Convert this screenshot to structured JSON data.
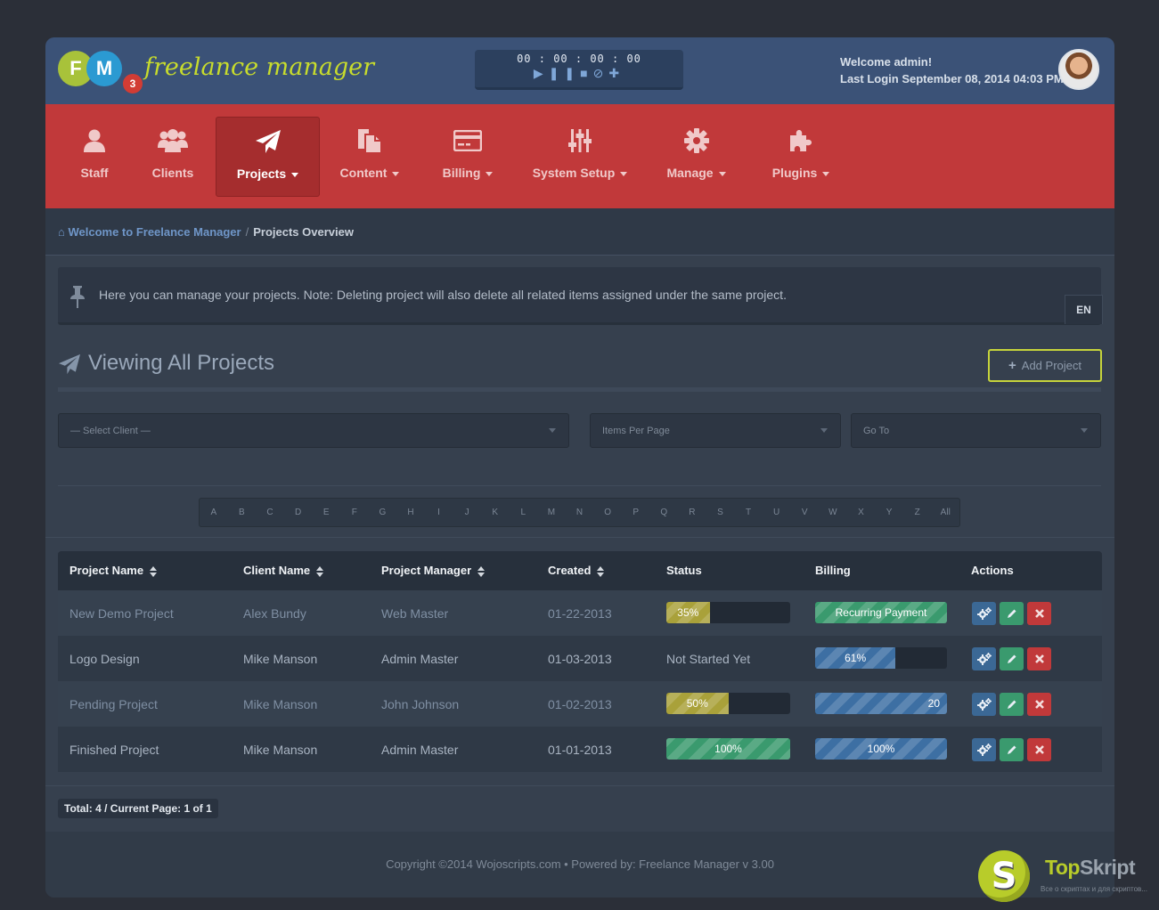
{
  "header": {
    "logo_f": "F",
    "logo_m": "M",
    "logo_num": "3",
    "brand": "freelance manager",
    "timer": "00 : 00 : 00 : 00",
    "welcome": "Welcome admin!",
    "last_login": "Last Login September 08, 2014 04:03 PM"
  },
  "nav": {
    "items": [
      {
        "label": "Staff",
        "icon": "user-icon"
      },
      {
        "label": "Clients",
        "icon": "users-icon"
      },
      {
        "label": "Projects",
        "icon": "paper-plane-icon",
        "active": true
      },
      {
        "label": "Content",
        "icon": "files-icon"
      },
      {
        "label": "Billing",
        "icon": "credit-card-icon"
      },
      {
        "label": "System Setup",
        "icon": "sliders-icon"
      },
      {
        "label": "Manage",
        "icon": "gear-icon"
      },
      {
        "label": "Plugins",
        "icon": "puzzle-icon"
      }
    ]
  },
  "breadcrumb": {
    "home": "Welcome to Freelance Manager",
    "separator": "/",
    "current": "Projects Overview"
  },
  "info": {
    "text": "Here you can manage your projects. Note: Deleting project will also delete all related items assigned under the same project.",
    "lang": "EN"
  },
  "page": {
    "title": "Viewing All Projects",
    "add_button": "Add Project"
  },
  "filters": {
    "client": "— Select Client —",
    "per_page": "Items Per Page",
    "go_to": "Go To"
  },
  "alphabet": [
    "A",
    "B",
    "C",
    "D",
    "E",
    "F",
    "G",
    "H",
    "I",
    "J",
    "K",
    "L",
    "M",
    "N",
    "O",
    "P",
    "Q",
    "R",
    "S",
    "T",
    "U",
    "V",
    "W",
    "X",
    "Y",
    "Z",
    "All"
  ],
  "table": {
    "headers": {
      "project": "Project Name",
      "client": "Client Name",
      "manager": "Project Manager",
      "created": "Created",
      "status": "Status",
      "billing": "Billing",
      "actions": "Actions"
    },
    "rows": [
      {
        "project": "New Demo Project",
        "client": "Alex Bundy",
        "manager": "Web Master",
        "created": "01-22-2013",
        "status": {
          "text": "",
          "percent": 35,
          "label": "35%"
        },
        "billing": {
          "percent": 100,
          "label": "Recurring Payment"
        }
      },
      {
        "project": "Logo Design",
        "client": "Mike Manson",
        "manager": "Admin Master",
        "created": "01-03-2013",
        "status": {
          "text": "Not Started Yet",
          "percent": 0,
          "label": ""
        },
        "billing": {
          "percent": 61,
          "label": "61%"
        }
      },
      {
        "project": "Pending Project",
        "client": "Mike Manson",
        "manager": "John Johnson",
        "created": "01-02-2013",
        "status": {
          "text": "",
          "percent": 50,
          "label": "50%"
        },
        "billing": {
          "percent": 100,
          "label": "20"
        }
      },
      {
        "project": "Finished Project",
        "client": "Mike Manson",
        "manager": "Admin Master",
        "created": "01-01-2013",
        "status": {
          "text": "",
          "percent": 100,
          "label": "100%"
        },
        "billing": {
          "percent": 100,
          "label": "100%"
        }
      }
    ]
  },
  "summary": "Total: 4 / Current Page: 1 of 1",
  "footer": "Copyright ©2014 Wojoscripts.com • Powered by: Freelance Manager v 3.00",
  "watermark": {
    "letter": "S",
    "name_a": "Top",
    "name_b": "Skript",
    "tagline": "Все о скриптах и для скриптов..."
  },
  "colors": {
    "nav_bg": "#c1393a",
    "header_bg": "#3b5277",
    "accent_lime": "#c8dc2c",
    "status_olive": "#a9a13a",
    "green": "#3a9a6e",
    "blue": "#3d6fa3"
  }
}
